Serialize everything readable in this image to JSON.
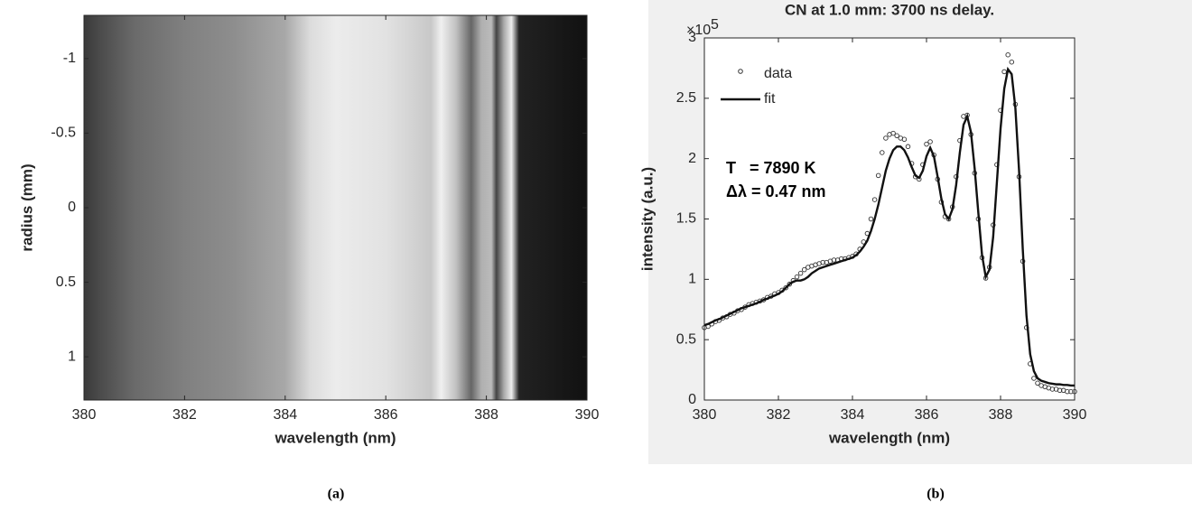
{
  "captions": [
    "(a)",
    "(b)"
  ],
  "chart_data": [
    {
      "type": "image",
      "xlabel": "wavelength (nm)",
      "ylabel": "radius (mm)",
      "xlim": [
        380,
        390
      ],
      "xticks": [
        380,
        382,
        384,
        386,
        388,
        390
      ],
      "ylim": [
        1.29,
        -1.29
      ],
      "yticks": [
        -1,
        -0.5,
        0,
        0.5,
        1
      ]
    },
    {
      "type": "line",
      "title": "CN at 1.0 mm: 3700 ns delay.",
      "xlabel": "wavelength (nm)",
      "ylabel": "intensity (a.u.)",
      "y_multiplier": {
        "base": "×10",
        "exponent": "5"
      },
      "annotations": [
        "T   = 7890 K",
        "Δλ = 0.47 nm"
      ],
      "xlim": [
        380,
        390
      ],
      "xticks": [
        380,
        382,
        384,
        386,
        388,
        390
      ],
      "ylim": [
        0,
        3
      ],
      "yticks": [
        0,
        0.5,
        1,
        1.5,
        2,
        2.5,
        3
      ],
      "x": [
        380,
        380.1,
        380.2,
        380.3,
        380.4,
        380.5,
        380.6,
        380.7,
        380.8,
        380.9,
        381,
        381.1,
        381.2,
        381.3,
        381.4,
        381.5,
        381.6,
        381.7,
        381.8,
        381.9,
        382,
        382.1,
        382.2,
        382.3,
        382.4,
        382.5,
        382.6,
        382.7,
        382.8,
        382.9,
        383,
        383.1,
        383.2,
        383.3,
        383.4,
        383.5,
        383.6,
        383.7,
        383.8,
        383.9,
        384,
        384.1,
        384.2,
        384.3,
        384.4,
        384.5,
        384.6,
        384.7,
        384.8,
        384.9,
        385,
        385.1,
        385.2,
        385.3,
        385.4,
        385.5,
        385.6,
        385.7,
        385.8,
        385.9,
        386,
        386.1,
        386.2,
        386.3,
        386.4,
        386.5,
        386.6,
        386.7,
        386.8,
        386.9,
        387,
        387.1,
        387.2,
        387.3,
        387.4,
        387.5,
        387.6,
        387.7,
        387.8,
        387.9,
        388,
        388.1,
        388.2,
        388.3,
        388.4,
        388.5,
        388.6,
        388.7,
        388.8,
        388.9,
        389,
        389.1,
        389.2,
        389.3,
        389.4,
        389.5,
        389.6,
        389.7,
        389.8,
        389.9,
        390
      ],
      "series": [
        {
          "name": "data",
          "mode": "markers",
          "color": "#333333",
          "values": [
            0.6,
            0.61,
            0.63,
            0.65,
            0.66,
            0.68,
            0.69,
            0.71,
            0.72,
            0.74,
            0.75,
            0.77,
            0.79,
            0.8,
            0.81,
            0.82,
            0.83,
            0.85,
            0.86,
            0.88,
            0.89,
            0.91,
            0.93,
            0.96,
            0.99,
            1.02,
            1.05,
            1.08,
            1.1,
            1.11,
            1.12,
            1.13,
            1.14,
            1.14,
            1.15,
            1.16,
            1.16,
            1.17,
            1.17,
            1.18,
            1.19,
            1.21,
            1.25,
            1.31,
            1.38,
            1.5,
            1.66,
            1.86,
            2.05,
            2.17,
            2.2,
            2.21,
            2.19,
            2.17,
            2.16,
            2.1,
            1.96,
            1.85,
            1.83,
            1.95,
            2.12,
            2.14,
            2.03,
            1.83,
            1.64,
            1.52,
            1.5,
            1.6,
            1.85,
            2.15,
            2.35,
            2.36,
            2.2,
            1.88,
            1.5,
            1.18,
            1.01,
            1.1,
            1.45,
            1.95,
            2.4,
            2.72,
            2.86,
            2.8,
            2.45,
            1.85,
            1.15,
            0.6,
            0.3,
            0.18,
            0.14,
            0.12,
            0.11,
            0.1,
            0.09,
            0.09,
            0.08,
            0.08,
            0.07,
            0.07,
            0.07
          ]
        },
        {
          "name": "fit",
          "mode": "line",
          "color": "#111111",
          "values": [
            0.62,
            0.63,
            0.645,
            0.66,
            0.67,
            0.685,
            0.7,
            0.715,
            0.73,
            0.745,
            0.76,
            0.77,
            0.78,
            0.79,
            0.8,
            0.815,
            0.83,
            0.84,
            0.855,
            0.865,
            0.88,
            0.9,
            0.93,
            0.96,
            0.98,
            0.99,
            0.99,
            1.0,
            1.02,
            1.05,
            1.07,
            1.09,
            1.1,
            1.11,
            1.12,
            1.13,
            1.14,
            1.15,
            1.16,
            1.17,
            1.18,
            1.2,
            1.23,
            1.27,
            1.32,
            1.4,
            1.5,
            1.62,
            1.76,
            1.9,
            2.0,
            2.07,
            2.1,
            2.1,
            2.07,
            2.01,
            1.93,
            1.86,
            1.84,
            1.9,
            2.02,
            2.09,
            2.02,
            1.85,
            1.67,
            1.54,
            1.5,
            1.58,
            1.78,
            2.05,
            2.28,
            2.35,
            2.22,
            1.92,
            1.55,
            1.2,
            1.02,
            1.08,
            1.35,
            1.8,
            2.25,
            2.58,
            2.74,
            2.7,
            2.42,
            1.9,
            1.25,
            0.7,
            0.38,
            0.24,
            0.18,
            0.16,
            0.15,
            0.14,
            0.135,
            0.13,
            0.13,
            0.125,
            0.125,
            0.12,
            0.12
          ]
        }
      ]
    }
  ]
}
